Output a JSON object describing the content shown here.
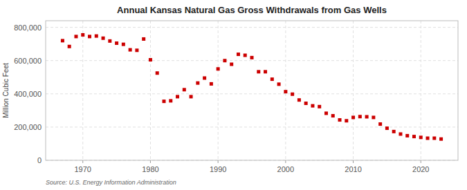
{
  "chart_data": {
    "type": "scatter",
    "title": "Annual Kansas Natural Gas Gross Withdrawals from Gas Wells",
    "ylabel": "Million Cubic Feet",
    "annotations": [
      "Source: U.S. Energy Information Administration"
    ],
    "color": "#cc0000",
    "marker": "square",
    "grid": true,
    "x": [
      1967,
      1968,
      1969,
      1970,
      1971,
      1972,
      1973,
      1974,
      1975,
      1976,
      1977,
      1978,
      1979,
      1980,
      1981,
      1982,
      1983,
      1984,
      1985,
      1986,
      1987,
      1988,
      1989,
      1990,
      1991,
      1992,
      1993,
      1994,
      1995,
      1996,
      1997,
      1998,
      1999,
      2000,
      2001,
      2002,
      2003,
      2004,
      2005,
      2006,
      2007,
      2008,
      2009,
      2010,
      2011,
      2012,
      2013,
      2014,
      2015,
      2016,
      2017,
      2018,
      2019,
      2020,
      2021,
      2022,
      2023
    ],
    "values": [
      720000,
      685000,
      745000,
      755000,
      745000,
      748000,
      735000,
      718000,
      705000,
      698000,
      665000,
      662000,
      730000,
      605000,
      525000,
      355000,
      358000,
      383000,
      425000,
      383000,
      465000,
      495000,
      460000,
      550000,
      600000,
      578000,
      638000,
      632000,
      618000,
      533000,
      533000,
      488000,
      458000,
      413000,
      398000,
      363000,
      343000,
      328000,
      323000,
      283000,
      268000,
      243000,
      238000,
      258000,
      263000,
      262000,
      258000,
      218000,
      193000,
      173000,
      158000,
      148000,
      143000,
      138000,
      133000,
      133000,
      128000
    ],
    "xlim": [
      1964.5,
      2025.5
    ],
    "xticks": [
      1970,
      1980,
      1990,
      2000,
      2010,
      2020
    ],
    "ylim": [
      0,
      840000
    ],
    "yticks": [
      0,
      {
        "value": 200000,
        "label": "200,000"
      },
      {
        "value": 400000,
        "label": "400,000"
      },
      {
        "value": 600000,
        "label": "600,000"
      },
      {
        "value": 800000,
        "label": "800,000"
      }
    ]
  }
}
